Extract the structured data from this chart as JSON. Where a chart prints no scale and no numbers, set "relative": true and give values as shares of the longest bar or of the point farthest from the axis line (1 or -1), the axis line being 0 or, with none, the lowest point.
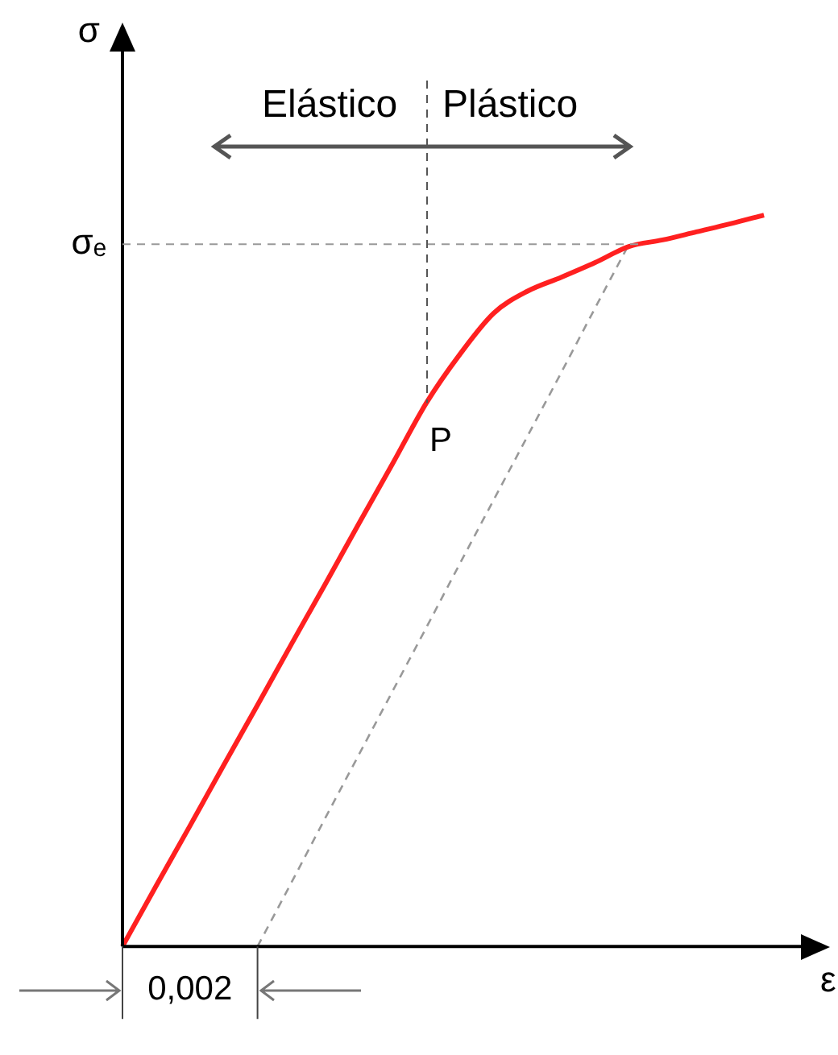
{
  "chart_data": {
    "type": "line",
    "relative": true,
    "xlabel": "ε",
    "ylabel": "σ",
    "categories": [
      null,
      null,
      null,
      null,
      null,
      null,
      null,
      null,
      null,
      null,
      null,
      null,
      null,
      null,
      null,
      null,
      null,
      null,
      null,
      null,
      null
    ],
    "series": [
      {
        "color": "#ff2020",
        "values": [
          0,
          0.083,
          0.165,
          0.248,
          0.33,
          0.413,
          0.495,
          0.578,
          0.66,
          0.743,
          0.81,
          0.866,
          0.896,
          0.915,
          0.935,
          0.957,
          0.966,
          0.977,
          0.988,
          1,
          null
        ]
      },
      {
        "color": "#999999",
        "line_style": "dashed",
        "values": [
          null,
          null,
          null,
          null,
          0,
          0.087,
          0.175,
          0.262,
          0.349,
          0.436,
          0.524,
          0.611,
          0.698,
          0.785,
          0.873,
          0.96,
          null,
          null,
          null,
          null,
          null
        ]
      }
    ],
    "ref_lines": [
      {
        "axis": "y",
        "value": 0.96,
        "label": "σₑ",
        "color": "#999999",
        "line_style": "dashed"
      }
    ],
    "annotations": [
      "Elástico",
      "Plástico",
      "P",
      "0,002"
    ],
    "grid": false,
    "legend": false,
    "marker": "none"
  }
}
